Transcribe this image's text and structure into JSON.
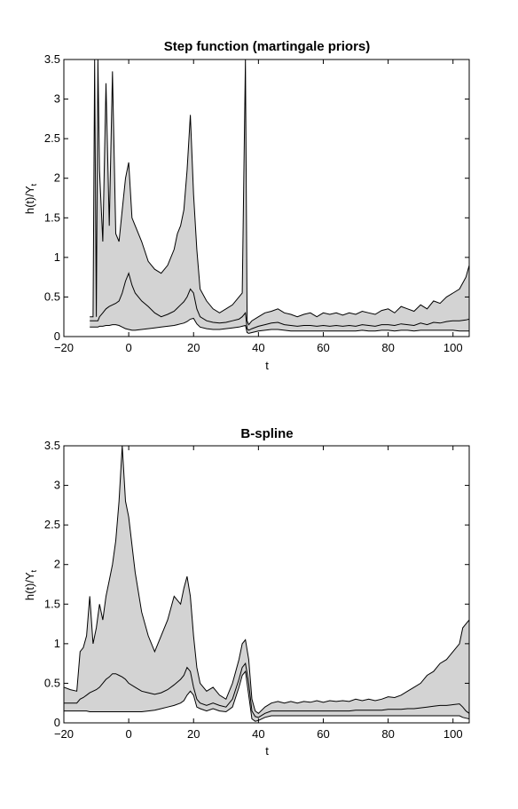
{
  "chart_data": [
    {
      "type": "area",
      "title": "Step function (martingale priors)",
      "xlabel": "t",
      "ylabel_main": "h(t)/Y",
      "ylabel_sub": "t",
      "xlim": [
        -20,
        105
      ],
      "ylim": [
        0,
        3.5
      ],
      "xticks": [
        -20,
        0,
        20,
        40,
        60,
        80,
        100
      ],
      "yticks": [
        0,
        0.5,
        1,
        1.5,
        2,
        2.5,
        3,
        3.5
      ],
      "ytick_labels": [
        "0",
        "0.5",
        "1",
        "1.5",
        "2",
        "2.5",
        "3",
        "3.5"
      ],
      "grid": false,
      "fill_color": "#d3d3d3",
      "series": [
        {
          "x": [
            -12,
            -11,
            -10.5,
            -10,
            -9.5,
            -9,
            -8,
            -7,
            -6,
            -5,
            -4,
            -3,
            -2,
            -1,
            0,
            1,
            2,
            4,
            6,
            8,
            10,
            12,
            14,
            15,
            16,
            17,
            18,
            19,
            20,
            21,
            22,
            24,
            26,
            28,
            30,
            32,
            34,
            35,
            36,
            36.5,
            37,
            38,
            40,
            42,
            44,
            46,
            48,
            50,
            52,
            54,
            56,
            58,
            60,
            62,
            64,
            66,
            68,
            70,
            72,
            74,
            76,
            78,
            80,
            82,
            84,
            86,
            88,
            90,
            92,
            94,
            96,
            98,
            100,
            102,
            104,
            105
          ],
          "upper": [
            0.25,
            0.25,
            3.5,
            0.25,
            3.5,
            2.1,
            1.2,
            3.2,
            1.4,
            3.35,
            1.3,
            1.2,
            1.6,
            2.0,
            2.2,
            1.5,
            1.4,
            1.2,
            0.95,
            0.85,
            0.8,
            0.9,
            1.1,
            1.3,
            1.4,
            1.6,
            2.1,
            2.8,
            1.8,
            1.1,
            0.6,
            0.45,
            0.35,
            0.3,
            0.35,
            0.4,
            0.5,
            0.55,
            3.5,
            0.2,
            0.15,
            0.2,
            0.25,
            0.3,
            0.32,
            0.35,
            0.3,
            0.28,
            0.25,
            0.28,
            0.3,
            0.25,
            0.3,
            0.28,
            0.3,
            0.27,
            0.3,
            0.28,
            0.32,
            0.3,
            0.28,
            0.33,
            0.35,
            0.3,
            0.38,
            0.35,
            0.32,
            0.4,
            0.35,
            0.45,
            0.42,
            0.5,
            0.55,
            0.6,
            0.75,
            0.9
          ],
          "mid": [
            0.2,
            0.2,
            0.2,
            0.2,
            0.2,
            0.25,
            0.3,
            0.35,
            0.38,
            0.4,
            0.42,
            0.45,
            0.55,
            0.7,
            0.8,
            0.65,
            0.55,
            0.45,
            0.38,
            0.3,
            0.25,
            0.28,
            0.32,
            0.36,
            0.4,
            0.44,
            0.5,
            0.6,
            0.55,
            0.35,
            0.25,
            0.2,
            0.18,
            0.17,
            0.18,
            0.2,
            0.22,
            0.25,
            0.3,
            0.1,
            0.08,
            0.1,
            0.13,
            0.15,
            0.17,
            0.18,
            0.15,
            0.14,
            0.13,
            0.14,
            0.14,
            0.13,
            0.14,
            0.13,
            0.14,
            0.13,
            0.14,
            0.13,
            0.15,
            0.14,
            0.13,
            0.15,
            0.15,
            0.14,
            0.16,
            0.15,
            0.14,
            0.17,
            0.15,
            0.18,
            0.17,
            0.19,
            0.2,
            0.2,
            0.21,
            0.22
          ],
          "lower": [
            0.12,
            0.12,
            0.12,
            0.12,
            0.12,
            0.13,
            0.13,
            0.14,
            0.14,
            0.15,
            0.15,
            0.14,
            0.12,
            0.1,
            0.09,
            0.08,
            0.08,
            0.09,
            0.1,
            0.11,
            0.12,
            0.13,
            0.14,
            0.15,
            0.16,
            0.17,
            0.19,
            0.22,
            0.23,
            0.16,
            0.12,
            0.1,
            0.09,
            0.09,
            0.1,
            0.11,
            0.12,
            0.13,
            0.14,
            0.05,
            0.04,
            0.05,
            0.07,
            0.08,
            0.09,
            0.09,
            0.08,
            0.07,
            0.07,
            0.07,
            0.07,
            0.07,
            0.07,
            0.07,
            0.07,
            0.07,
            0.07,
            0.07,
            0.08,
            0.07,
            0.07,
            0.08,
            0.08,
            0.07,
            0.08,
            0.08,
            0.07,
            0.08,
            0.08,
            0.08,
            0.08,
            0.08,
            0.08,
            0.07,
            0.07,
            0.07
          ]
        }
      ]
    },
    {
      "type": "area",
      "title": "B-spline",
      "xlabel": "t",
      "ylabel_main": "h(t)/Y",
      "ylabel_sub": "t",
      "xlim": [
        -20,
        105
      ],
      "ylim": [
        0,
        3.5
      ],
      "xticks": [
        -20,
        0,
        20,
        40,
        60,
        80,
        100
      ],
      "yticks": [
        0,
        0.5,
        1,
        1.5,
        2,
        2.5,
        3,
        3.5
      ],
      "ytick_labels": [
        "0",
        "0.5",
        "1",
        "1.5",
        "2",
        "2.5",
        "3",
        "3.5"
      ],
      "grid": false,
      "fill_color": "#d3d3d3",
      "series": [
        {
          "x": [
            -20,
            -18,
            -16,
            -15,
            -14,
            -13,
            -12,
            -11,
            -10,
            -9,
            -8,
            -7,
            -6,
            -5,
            -4,
            -3,
            -2,
            -1,
            0,
            2,
            4,
            6,
            8,
            10,
            12,
            14,
            16,
            17,
            18,
            19,
            20,
            21,
            22,
            24,
            26,
            28,
            30,
            32,
            34,
            35,
            36,
            37,
            38,
            39,
            40,
            42,
            44,
            46,
            48,
            50,
            52,
            54,
            56,
            58,
            60,
            62,
            64,
            66,
            68,
            70,
            72,
            74,
            76,
            78,
            80,
            82,
            84,
            86,
            88,
            90,
            92,
            94,
            96,
            98,
            100,
            102,
            103,
            104,
            105
          ],
          "upper": [
            0.45,
            0.42,
            0.4,
            0.9,
            0.95,
            1.1,
            1.6,
            1.0,
            1.2,
            1.5,
            1.3,
            1.6,
            1.8,
            2.0,
            2.3,
            2.8,
            3.5,
            2.8,
            2.6,
            1.9,
            1.4,
            1.1,
            0.9,
            1.1,
            1.3,
            1.6,
            1.5,
            1.7,
            1.85,
            1.6,
            1.1,
            0.7,
            0.5,
            0.4,
            0.45,
            0.35,
            0.3,
            0.5,
            0.8,
            1.0,
            1.05,
            0.8,
            0.3,
            0.15,
            0.12,
            0.2,
            0.25,
            0.27,
            0.25,
            0.27,
            0.25,
            0.27,
            0.26,
            0.28,
            0.26,
            0.28,
            0.27,
            0.28,
            0.27,
            0.3,
            0.28,
            0.3,
            0.28,
            0.3,
            0.33,
            0.32,
            0.35,
            0.4,
            0.45,
            0.5,
            0.6,
            0.65,
            0.75,
            0.8,
            0.9,
            1.0,
            1.2,
            1.25,
            1.3
          ],
          "mid": [
            0.25,
            0.25,
            0.25,
            0.3,
            0.32,
            0.35,
            0.38,
            0.4,
            0.42,
            0.45,
            0.5,
            0.55,
            0.58,
            0.62,
            0.62,
            0.6,
            0.58,
            0.55,
            0.5,
            0.45,
            0.4,
            0.38,
            0.36,
            0.38,
            0.42,
            0.48,
            0.55,
            0.6,
            0.7,
            0.65,
            0.45,
            0.3,
            0.25,
            0.22,
            0.25,
            0.22,
            0.2,
            0.3,
            0.55,
            0.7,
            0.75,
            0.5,
            0.15,
            0.08,
            0.07,
            0.12,
            0.15,
            0.15,
            0.15,
            0.15,
            0.15,
            0.15,
            0.15,
            0.15,
            0.15,
            0.15,
            0.15,
            0.15,
            0.15,
            0.16,
            0.16,
            0.16,
            0.16,
            0.16,
            0.17,
            0.17,
            0.17,
            0.18,
            0.18,
            0.19,
            0.2,
            0.21,
            0.22,
            0.22,
            0.23,
            0.24,
            0.2,
            0.15,
            0.12
          ],
          "lower": [
            0.15,
            0.15,
            0.15,
            0.15,
            0.15,
            0.15,
            0.14,
            0.14,
            0.14,
            0.14,
            0.14,
            0.14,
            0.14,
            0.14,
            0.14,
            0.14,
            0.14,
            0.14,
            0.14,
            0.14,
            0.14,
            0.15,
            0.16,
            0.18,
            0.2,
            0.22,
            0.25,
            0.28,
            0.35,
            0.4,
            0.35,
            0.2,
            0.18,
            0.15,
            0.18,
            0.15,
            0.14,
            0.2,
            0.45,
            0.6,
            0.65,
            0.35,
            0.05,
            0.02,
            0.03,
            0.07,
            0.09,
            0.09,
            0.09,
            0.09,
            0.09,
            0.09,
            0.09,
            0.09,
            0.09,
            0.09,
            0.09,
            0.09,
            0.09,
            0.09,
            0.09,
            0.09,
            0.09,
            0.09,
            0.09,
            0.09,
            0.09,
            0.09,
            0.09,
            0.09,
            0.09,
            0.09,
            0.09,
            0.09,
            0.09,
            0.09,
            0.07,
            0.06,
            0.05
          ]
        }
      ]
    }
  ]
}
